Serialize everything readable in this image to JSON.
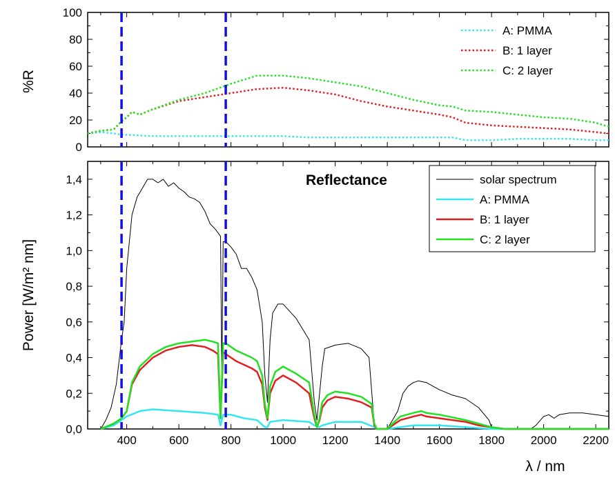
{
  "chart_data": [
    {
      "type": "line",
      "ylabel": "%R",
      "xlim": [
        250,
        2250
      ],
      "ylim": [
        0,
        100
      ],
      "y_ticks": [
        "0",
        "20",
        "40",
        "60",
        "80",
        "100"
      ],
      "legend_position": "top-right",
      "series": [
        {
          "name": "A:  PMMA",
          "color": "#33e6f0",
          "style": "dotted",
          "x": [
            250,
            300,
            350,
            380,
            400,
            500,
            600,
            700,
            800,
            900,
            1000,
            1100,
            1200,
            1300,
            1400,
            1500,
            1600,
            1650,
            1700,
            1800,
            1900,
            2000,
            2100,
            2200,
            2250
          ],
          "y": [
            10,
            11,
            10,
            9,
            9,
            8,
            8,
            8,
            8,
            8,
            8,
            7,
            7,
            7,
            7,
            7,
            7,
            7,
            5,
            5,
            6,
            6,
            6,
            5,
            5
          ]
        },
        {
          "name": "B:  1 layer",
          "color": "#e02020",
          "style": "dotted",
          "x": [
            250,
            300,
            350,
            380,
            400,
            420,
            450,
            500,
            600,
            700,
            800,
            900,
            1000,
            1100,
            1200,
            1300,
            1400,
            1500,
            1600,
            1650,
            1700,
            1800,
            1900,
            2000,
            2100,
            2200,
            2250
          ],
          "y": [
            10,
            12,
            13,
            19,
            22,
            26,
            24,
            28,
            34,
            37,
            40,
            43,
            44,
            42,
            39,
            34,
            30,
            27,
            24,
            22,
            18,
            16,
            15,
            14,
            13,
            11,
            10
          ]
        },
        {
          "name": "C:  2 layer",
          "color": "#22e022",
          "style": "dotted",
          "x": [
            250,
            300,
            350,
            380,
            400,
            420,
            450,
            500,
            600,
            700,
            800,
            900,
            1000,
            1100,
            1200,
            1300,
            1400,
            1500,
            1600,
            1650,
            1700,
            1800,
            1900,
            2000,
            2100,
            2200,
            2250
          ],
          "y": [
            10,
            12,
            13,
            19,
            22,
            26,
            24,
            28,
            35,
            40,
            47,
            53,
            53,
            51,
            48,
            45,
            40,
            35,
            31,
            30,
            27,
            26,
            24,
            22,
            21,
            18,
            15
          ]
        }
      ]
    },
    {
      "type": "line",
      "title": "Reflectance",
      "ylabel": "Power [W/m² nm]",
      "xlabel": "λ / nm",
      "xlim": [
        250,
        2250
      ],
      "ylim": [
        0,
        1.5
      ],
      "x_ticks": [
        "400",
        "600",
        "800",
        "1000",
        "1200",
        "1400",
        "1600",
        "1800",
        "2000",
        "2200"
      ],
      "y_ticks": [
        "0,0",
        "0,2",
        "0,4",
        "0,6",
        "0,8",
        "1,0",
        "1,2",
        "1,4"
      ],
      "legend_position": "top-right",
      "markers": {
        "vertical_dashed_lines_x": [
          380,
          780
        ],
        "color": "#1010e0"
      },
      "series": [
        {
          "name": "solar spectrum",
          "color": "#000000",
          "width": 1,
          "x": [
            300,
            320,
            340,
            360,
            380,
            390,
            400,
            420,
            440,
            460,
            480,
            500,
            520,
            540,
            560,
            580,
            600,
            620,
            640,
            660,
            680,
            700,
            720,
            740,
            760,
            765,
            770,
            780,
            800,
            820,
            840,
            860,
            880,
            900,
            920,
            930,
            940,
            950,
            960,
            980,
            1000,
            1050,
            1100,
            1120,
            1130,
            1140,
            1150,
            1160,
            1200,
            1250,
            1300,
            1330,
            1350,
            1360,
            1400,
            1420,
            1440,
            1460,
            1480,
            1500,
            1520,
            1550,
            1600,
            1650,
            1700,
            1750,
            1790,
            1800,
            1820,
            1850,
            1900,
            1950,
            1970,
            2000,
            2020,
            2040,
            2060,
            2100,
            2150,
            2200,
            2250
          ],
          "y": [
            0,
            0.05,
            0.12,
            0.25,
            0.5,
            0.6,
            0.9,
            1.2,
            1.3,
            1.35,
            1.4,
            1.4,
            1.38,
            1.4,
            1.36,
            1.38,
            1.35,
            1.33,
            1.3,
            1.29,
            1.27,
            1.22,
            1.15,
            1.12,
            1.08,
            0.3,
            1.05,
            1.05,
            1.02,
            0.98,
            0.9,
            0.9,
            0.85,
            0.78,
            0.6,
            0.3,
            0.15,
            0.5,
            0.65,
            0.7,
            0.7,
            0.62,
            0.5,
            0.15,
            0.05,
            0.2,
            0.35,
            0.45,
            0.47,
            0.48,
            0.45,
            0.4,
            0.02,
            0,
            0,
            0.05,
            0.1,
            0.2,
            0.24,
            0.26,
            0.27,
            0.26,
            0.22,
            0.19,
            0.17,
            0.12,
            0.05,
            0.01,
            0,
            0,
            0,
            0,
            0.02,
            0.07,
            0.08,
            0.06,
            0.08,
            0.09,
            0.09,
            0.08,
            0.07
          ]
        },
        {
          "name": "A: PMMA",
          "color": "#33e6f0",
          "width": 2.5,
          "x": [
            300,
            350,
            380,
            400,
            450,
            500,
            600,
            700,
            750,
            760,
            770,
            800,
            850,
            900,
            930,
            940,
            950,
            1000,
            1100,
            1120,
            1140,
            1150,
            1200,
            1300,
            1350,
            1360,
            1400,
            1450,
            1500,
            1600,
            1700,
            1800,
            1900,
            2000,
            2100,
            2200,
            2250
          ],
          "y": [
            0,
            0.02,
            0.05,
            0.07,
            0.1,
            0.11,
            0.1,
            0.09,
            0.08,
            0.02,
            0.08,
            0.08,
            0.06,
            0.05,
            0.01,
            0.01,
            0.04,
            0.05,
            0.04,
            0.02,
            0.01,
            0.02,
            0.04,
            0.04,
            0.01,
            0,
            0,
            0.01,
            0.02,
            0.02,
            0.01,
            0,
            0,
            0,
            0,
            0,
            0
          ]
        },
        {
          "name": "B: 1 layer",
          "color": "#e02020",
          "width": 2.5,
          "x": [
            300,
            350,
            380,
            400,
            420,
            450,
            500,
            550,
            600,
            650,
            700,
            730,
            750,
            760,
            770,
            780,
            800,
            820,
            850,
            880,
            900,
            920,
            930,
            940,
            950,
            970,
            1000,
            1050,
            1100,
            1120,
            1130,
            1140,
            1150,
            1170,
            1200,
            1250,
            1300,
            1340,
            1350,
            1360,
            1400,
            1420,
            1450,
            1500,
            1530,
            1550,
            1600,
            1700,
            1750,
            1800,
            1850,
            2250
          ],
          "y": [
            0,
            0.03,
            0.06,
            0.1,
            0.25,
            0.33,
            0.4,
            0.44,
            0.46,
            0.47,
            0.46,
            0.44,
            0.42,
            0.06,
            0.43,
            0.42,
            0.4,
            0.38,
            0.36,
            0.34,
            0.32,
            0.25,
            0.12,
            0.05,
            0.2,
            0.27,
            0.3,
            0.26,
            0.2,
            0.06,
            0.01,
            0.05,
            0.12,
            0.16,
            0.18,
            0.17,
            0.15,
            0.12,
            0.02,
            0,
            0,
            0.02,
            0.05,
            0.07,
            0.08,
            0.07,
            0.06,
            0.04,
            0.02,
            0.01,
            0,
            0
          ]
        },
        {
          "name": "C: 2 layer",
          "color": "#22e022",
          "width": 2.5,
          "x": [
            300,
            350,
            380,
            400,
            420,
            450,
            500,
            550,
            600,
            650,
            700,
            730,
            750,
            760,
            770,
            780,
            800,
            820,
            850,
            880,
            900,
            920,
            930,
            940,
            950,
            970,
            1000,
            1050,
            1100,
            1120,
            1130,
            1140,
            1150,
            1170,
            1200,
            1250,
            1300,
            1340,
            1350,
            1360,
            1400,
            1420,
            1450,
            1500,
            1530,
            1550,
            1600,
            1700,
            1750,
            1800,
            1850,
            2250
          ],
          "y": [
            0,
            0.03,
            0.06,
            0.1,
            0.26,
            0.35,
            0.42,
            0.46,
            0.48,
            0.49,
            0.5,
            0.49,
            0.48,
            0.06,
            0.48,
            0.48,
            0.46,
            0.44,
            0.42,
            0.4,
            0.38,
            0.3,
            0.14,
            0.06,
            0.24,
            0.32,
            0.35,
            0.31,
            0.26,
            0.08,
            0.01,
            0.06,
            0.15,
            0.19,
            0.21,
            0.2,
            0.18,
            0.14,
            0.03,
            0,
            0,
            0.03,
            0.07,
            0.09,
            0.1,
            0.09,
            0.08,
            0.05,
            0.03,
            0.01,
            0,
            0
          ]
        }
      ]
    }
  ]
}
